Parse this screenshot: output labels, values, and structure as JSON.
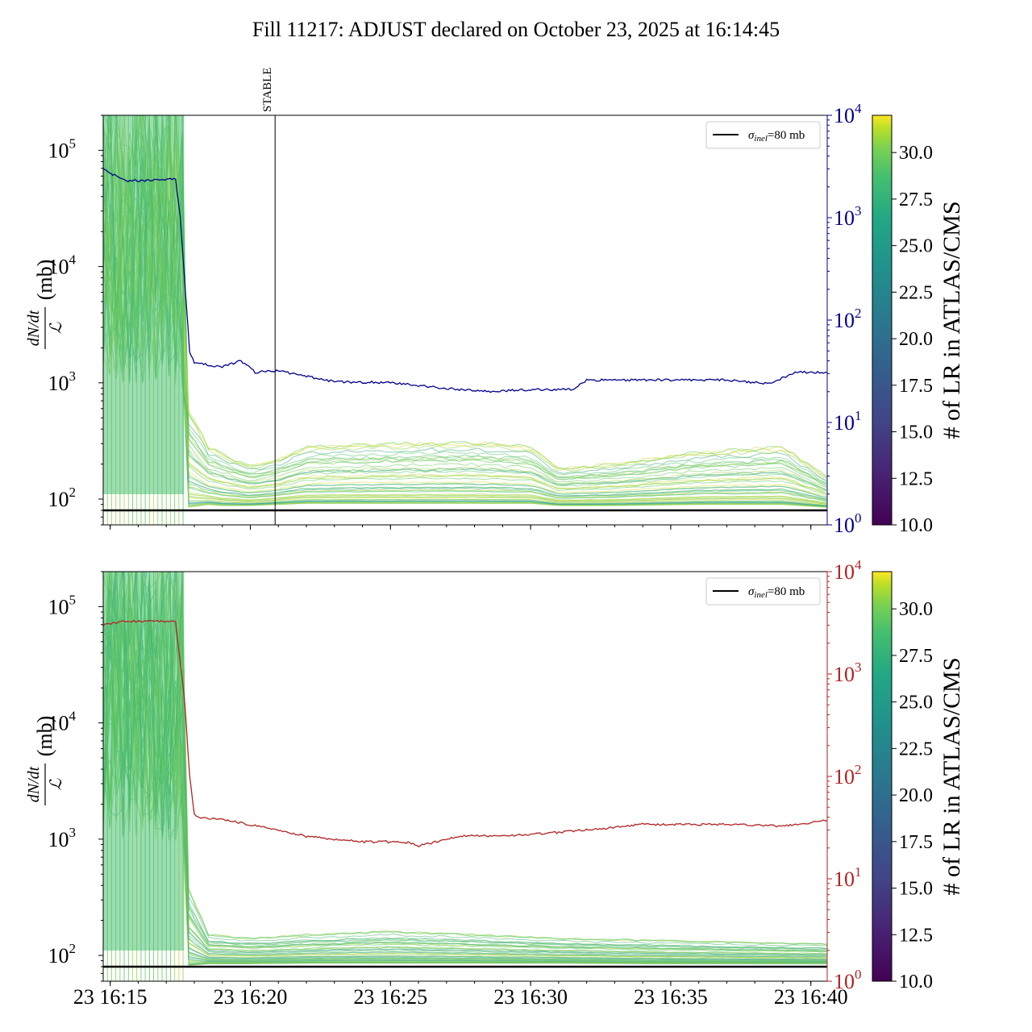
{
  "title": "Fill 11217: ADJUST declared on October 23, 2025 at 16:14:45",
  "x_ticks": [
    "23 16:15",
    "23 16:20",
    "23 16:25",
    "23 16:30",
    "23 16:35",
    "23 16:40"
  ],
  "left_y_ticks": [
    {
      "base": "10",
      "exp": "2",
      "value": 100
    },
    {
      "base": "10",
      "exp": "3",
      "value": 1000
    },
    {
      "base": "10",
      "exp": "4",
      "value": 10000
    },
    {
      "base": "10",
      "exp": "5",
      "value": 100000
    }
  ],
  "right_y_ticks": [
    {
      "base": "10",
      "exp": "0",
      "value": 1
    },
    {
      "base": "10",
      "exp": "1",
      "value": 10
    },
    {
      "base": "10",
      "exp": "2",
      "value": 100
    },
    {
      "base": "10",
      "exp": "3",
      "value": 1000
    },
    {
      "base": "10",
      "exp": "4",
      "value": 10000
    }
  ],
  "ylabel": {
    "fraction_num": "dN/dt",
    "fraction_den": "ℒ",
    "unit": "(mb)"
  },
  "colorbar": {
    "label": "# of LR in ATLAS/CMS",
    "ticks": [
      "10.0",
      "12.5",
      "15.0",
      "17.5",
      "20.0",
      "22.5",
      "25.0",
      "27.5",
      "30.0"
    ],
    "range": [
      10,
      32
    ],
    "colormap": "viridis"
  },
  "legend": {
    "sigma_symbol": "σ",
    "sigma_sub": "inel",
    "sigma_value": "=80 mb",
    "line_color": "#000000"
  },
  "annotation": {
    "label": "STABLE",
    "time": "16:20:53"
  },
  "colors": {
    "top_right_axis": "#00008b",
    "bottom_right_axis": "#b22222",
    "reference_line": "#000000"
  },
  "chart_data": [
    {
      "type": "line",
      "panel": "top",
      "x_unit": "time (HH:MM)",
      "x_range": [
        "16:14:45",
        "16:40:35"
      ],
      "left_ylim": [
        60,
        200000
      ],
      "left_log": true,
      "right_ylim": [
        1,
        10000
      ],
      "right_log": true,
      "right_color": "#00008b",
      "reference_line": {
        "label": "σinel=80 mb",
        "value": 80
      },
      "vertical_marker": {
        "label": "STABLE",
        "time": "16:20:53"
      },
      "series_right": {
        "x": [
          "16:14:45",
          "16:15:30",
          "16:16:30",
          "16:17:20",
          "16:17:30",
          "16:17:50",
          "16:18:00",
          "16:19:00",
          "16:19:40",
          "16:20:10",
          "16:21:00",
          "16:23:00",
          "16:25:00",
          "16:27:00",
          "16:28:30",
          "16:30:00",
          "16:31:30",
          "16:32:00",
          "16:34:00",
          "16:37:00",
          "16:38:30",
          "16:39:30",
          "16:40:35"
        ],
        "y": [
          3000,
          2300,
          2300,
          2400,
          1000,
          50,
          38,
          35,
          40,
          31,
          32,
          25,
          24.5,
          21.5,
          20,
          21,
          21,
          26,
          26,
          26,
          24,
          31,
          31
        ]
      },
      "band": {
        "x": [
          "16:14:45",
          "16:17:30",
          "16:17:45",
          "16:18:30",
          "16:19:00",
          "16:20:00",
          "16:21:00",
          "16:22:00",
          "16:25:00",
          "16:28:00",
          "16:30:00",
          "16:31:00",
          "16:33:00",
          "16:36:00",
          "16:39:00",
          "16:40:35"
        ],
        "upper": [
          200000,
          200000,
          700,
          300,
          260,
          200,
          230,
          300,
          320,
          330,
          300,
          190,
          210,
          270,
          300,
          160
        ],
        "median": [
          30000,
          30000,
          200,
          130,
          110,
          100,
          115,
          140,
          145,
          145,
          140,
          110,
          115,
          130,
          140,
          115
        ],
        "lower": [
          80,
          80,
          85,
          90,
          88,
          88,
          90,
          92,
          92,
          92,
          92,
          88,
          88,
          90,
          90,
          85
        ]
      }
    },
    {
      "type": "line",
      "panel": "bottom",
      "x_unit": "time (HH:MM)",
      "x_range": [
        "16:14:45",
        "16:40:35"
      ],
      "left_ylim": [
        60,
        200000
      ],
      "left_log": true,
      "right_ylim": [
        1,
        10000
      ],
      "right_log": true,
      "right_color": "#b22222",
      "reference_line": {
        "label": "σinel=80 mb",
        "value": 80
      },
      "series_right": {
        "x": [
          "16:14:45",
          "16:15:30",
          "16:16:30",
          "16:17:20",
          "16:17:40",
          "16:17:50",
          "16:18:00",
          "16:18:10",
          "16:19:00",
          "16:20:30",
          "16:22:00",
          "16:24:00",
          "16:25:30",
          "16:26:00",
          "16:27:30",
          "16:30:00",
          "16:32:00",
          "16:34:00",
          "16:37:00",
          "16:39:00",
          "16:40:35"
        ],
        "y": [
          3000,
          3300,
          3300,
          3300,
          500,
          100,
          42,
          40,
          38,
          32,
          26,
          23,
          23,
          21,
          26,
          27,
          30,
          34,
          34,
          33,
          37
        ]
      },
      "band": {
        "x": [
          "16:14:45",
          "16:17:30",
          "16:17:45",
          "16:18:30",
          "16:20:00",
          "16:22:00",
          "16:25:00",
          "16:28:00",
          "16:31:00",
          "16:34:00",
          "16:37:00",
          "16:40:35"
        ],
        "upper": [
          200000,
          200000,
          400,
          150,
          140,
          150,
          160,
          150,
          140,
          135,
          130,
          125
        ],
        "median": [
          30000,
          30000,
          150,
          110,
          110,
          115,
          120,
          115,
          112,
          110,
          108,
          105
        ],
        "lower": [
          80,
          80,
          82,
          85,
          85,
          86,
          86,
          86,
          86,
          85,
          85,
          85
        ]
      }
    }
  ]
}
